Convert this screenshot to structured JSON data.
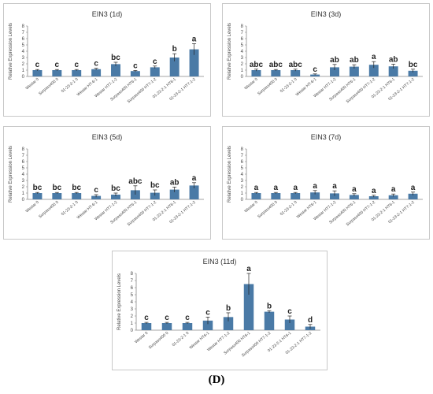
{
  "figure_caption": "(D)",
  "chart_data": [
    {
      "type": "bar",
      "title": "EIN3 (1d)",
      "ylabel": "Relative Expression Levels",
      "ylim": [
        0,
        8
      ],
      "yticks": [
        0,
        1,
        2,
        3,
        4,
        5,
        6,
        7,
        8
      ],
      "categories": [
        "Westar 0",
        "Surpass400 0",
        "01-23-2-1 0",
        "Westar HT-6-1",
        "Westar HT7-1-2",
        "Surpass400 HT6-1",
        "Surpass400 HT7-1-2",
        "01-23-2-1 HT6-1",
        "01-23-2-1 HT7-1-2"
      ],
      "values": [
        1.0,
        1.0,
        1.0,
        1.15,
        1.95,
        0.85,
        1.45,
        3.0,
        4.3
      ],
      "errors": [
        0.1,
        0.1,
        0.1,
        0.15,
        0.3,
        0.1,
        0.2,
        0.6,
        0.9
      ],
      "letters": [
        "c",
        "c",
        "c",
        "c",
        "bc",
        "c",
        "c",
        "b",
        "a"
      ],
      "bar_color": "#4a7aa6"
    },
    {
      "type": "bar",
      "title": "EIN3 (3d)",
      "ylabel": "Relative Expression Levels",
      "ylim": [
        0,
        8
      ],
      "yticks": [
        0,
        1,
        2,
        3,
        4,
        5,
        6,
        7,
        8
      ],
      "categories": [
        "Westar 0",
        "Surpass400 0",
        "01-23-2-1 0",
        "Westar HT-6-1",
        "Westar HT7-1-2",
        "Surpass400 HT6-1",
        "Surpass400 HT7-1-2",
        "01-23-2-1 HT6-1",
        "01-23-2-1 HT7-1-2"
      ],
      "values": [
        1.0,
        1.0,
        1.0,
        0.3,
        1.45,
        1.55,
        1.85,
        1.6,
        0.9
      ],
      "errors": [
        0.15,
        0.1,
        0.15,
        0.1,
        0.45,
        0.3,
        0.5,
        0.35,
        0.25
      ],
      "letters": [
        "abc",
        "abc",
        "abc",
        "c",
        "ab",
        "ab",
        "a",
        "ab",
        "bc"
      ],
      "bar_color": "#4a7aa6"
    },
    {
      "type": "bar",
      "title": "EIN3 (5d)",
      "ylabel": "Relative Expression Levels",
      "ylim": [
        0,
        8
      ],
      "yticks": [
        0,
        1,
        2,
        3,
        4,
        5,
        6,
        7,
        8
      ],
      "categories": [
        "Westar 0",
        "Surpass400 0",
        "01-23-2-1 0",
        "Westar HT-6-1",
        "Westar HT7-1-2",
        "Surpass400 HT6-1",
        "Surpass400 HT7-1-2",
        "01-23-2-1 HT6-1",
        "01-23-2-1 HT7-1-2"
      ],
      "values": [
        1.0,
        1.0,
        1.0,
        0.55,
        0.75,
        1.45,
        1.05,
        1.55,
        2.2
      ],
      "errors": [
        0.1,
        0.1,
        0.1,
        0.2,
        0.25,
        0.7,
        0.45,
        0.4,
        0.45
      ],
      "letters": [
        "bc",
        "bc",
        "bc",
        "c",
        "bc",
        "abc",
        "bc",
        "ab",
        "a"
      ],
      "bar_color": "#4a7aa6"
    },
    {
      "type": "bar",
      "title": "EIN3 (7d)",
      "ylabel": "Relative Expression Levels",
      "ylim": [
        0,
        8
      ],
      "yticks": [
        0,
        1,
        2,
        3,
        4,
        5,
        6,
        7,
        8
      ],
      "categories": [
        "Westar 0",
        "Surpass400 0",
        "01-23-2-1 0",
        "Westar HT6-1",
        "Westar HT7-1-2",
        "Surpass400 HT6-1",
        "Surpass400 HT7-1-2",
        "01-23-2-1 HT6-1",
        "01-23-2-1 HT7-1-2"
      ],
      "values": [
        1.0,
        1.0,
        1.0,
        1.1,
        0.95,
        0.7,
        0.5,
        0.65,
        0.9
      ],
      "errors": [
        0.1,
        0.1,
        0.1,
        0.3,
        0.4,
        0.2,
        0.15,
        0.2,
        0.25
      ],
      "letters": [
        "a",
        "a",
        "a",
        "a",
        "a",
        "a",
        "a",
        "a",
        "a"
      ],
      "bar_color": "#4a7aa6"
    },
    {
      "type": "bar",
      "title": "EIN3 (11d)",
      "ylabel": "Relative Expression Levels",
      "ylim": [
        0,
        8
      ],
      "yticks": [
        0,
        1,
        2,
        3,
        4,
        5,
        6,
        7,
        8
      ],
      "categories": [
        "Westar 0",
        "Surpass400 0",
        "01-23-2-1 0",
        "Westar HT6-1",
        "Westar HT7-1-2",
        "Surpass400 HT6-1",
        "Surpass400 HT7-1-2",
        "01-23-2-1 HT6-1",
        "01-23-2-1 HT7-1-2"
      ],
      "values": [
        1.0,
        1.0,
        1.0,
        1.35,
        1.85,
        6.5,
        2.6,
        1.5,
        0.5
      ],
      "errors": [
        0.1,
        0.1,
        0.1,
        0.5,
        0.6,
        1.5,
        0.15,
        0.5,
        0.3
      ],
      "letters": [
        "c",
        "c",
        "c",
        "c",
        "b",
        "a",
        "b",
        "c",
        "d"
      ],
      "bar_color": "#4a7aa6"
    }
  ]
}
